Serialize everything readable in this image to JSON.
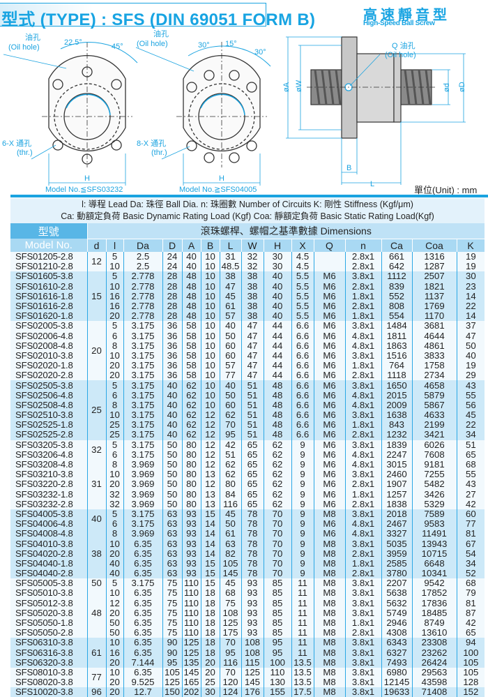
{
  "header": {
    "title": "型式 (TYPE) : SFS (DIN 69051 FORM B)",
    "subtitle_cn": "高速靜音型",
    "subtitle_en": "High-Speed Ball Screw"
  },
  "diagrams": {
    "left": {
      "oil_hole_cn": "油孔",
      "oil_hole_en": "(Oil hole)",
      "angle1": "22.5°",
      "angle2": "45°",
      "holes_cn": "6-X 通孔",
      "holes_en": "(thr.)",
      "dim": "H",
      "caption": "Model No.≦SFS03232"
    },
    "middle": {
      "oil_hole_cn": "油孔",
      "oil_hole_en": "(Oil hole)",
      "angle1": "30°",
      "angle2": "15°",
      "angle3": "30°",
      "holes_cn": "8-X 通孔",
      "holes_en": "(thr.)",
      "dim": "H",
      "caption": "Model No.≧SFS04005"
    },
    "side": {
      "oil_hole_cn": "Q 油孔",
      "oil_hole_en": "(Oil hole)",
      "dim_A": "øA",
      "dim_W": "øW",
      "dim_d": "ød",
      "dim_D": "øD",
      "dim_B": "B",
      "dim_L": "L"
    },
    "unit": "單位(Unit) : mm"
  },
  "legend": {
    "line1": "l: 導程  Lead    Da: 珠徑  Ball Dia.   n: 珠圈數  Number of Circuits    K: 剛性  Stiffness (Kgf/μm)",
    "line2": "Ca: 動額定負荷  Basic Dynamic Rating Load (Kgf)   Coa: 靜額定負荷  Basic Static Rating Load(Kgf)"
  },
  "table": {
    "model_header_cn": "型號",
    "model_header_en": "Model No.",
    "dimensions_header": "滾珠螺桿、螺帽之基準數據  Dimensions",
    "columns": [
      "d",
      "l",
      "Da",
      "D",
      "A",
      "B",
      "L",
      "W",
      "H",
      "X",
      "Q",
      "n",
      "Ca",
      "Coa",
      "K"
    ],
    "groups": [
      {
        "d": "12",
        "rows": [
          [
            "SFS01205-2.8",
            "5",
            "2.5",
            "24",
            "40",
            "10",
            "31",
            "32",
            "30",
            "4.5",
            "",
            "2.8x1",
            "661",
            "1316",
            "19"
          ],
          [
            "SFS01210-2.8",
            "10",
            "2.5",
            "24",
            "40",
            "10",
            "48.5",
            "32",
            "30",
            "4.5",
            "",
            "2.8x1",
            "642",
            "1287",
            "19"
          ]
        ]
      },
      {
        "d": "15",
        "rows": [
          [
            "SFS01605-3.8",
            "5",
            "2.778",
            "28",
            "48",
            "10",
            "38",
            "38",
            "40",
            "5.5",
            "M6",
            "3.8x1",
            "1112",
            "2507",
            "30"
          ],
          [
            "SFS01610-2.8",
            "10",
            "2.778",
            "28",
            "48",
            "10",
            "47",
            "38",
            "40",
            "5.5",
            "M6",
            "2.8x1",
            "839",
            "1821",
            "23"
          ],
          [
            "SFS01616-1.8",
            "16",
            "2.778",
            "28",
            "48",
            "10",
            "45",
            "38",
            "40",
            "5.5",
            "M6",
            "1.8x1",
            "552",
            "1137",
            "14"
          ],
          [
            "SFS01616-2.8",
            "16",
            "2.778",
            "28",
            "48",
            "10",
            "61",
            "38",
            "40",
            "5.5",
            "M6",
            "2.8x1",
            "808",
            "1769",
            "22"
          ],
          [
            "SFS01620-1.8",
            "20",
            "2.778",
            "28",
            "48",
            "10",
            "57",
            "38",
            "40",
            "5.5",
            "M6",
            "1.8x1",
            "554",
            "1170",
            "14"
          ]
        ]
      },
      {
        "d": "20",
        "rows": [
          [
            "SFS02005-3.8",
            "5",
            "3.175",
            "36",
            "58",
            "10",
            "40",
            "47",
            "44",
            "6.6",
            "M6",
            "3.8x1",
            "1484",
            "3681",
            "37"
          ],
          [
            "SFS02006-4.8",
            "6",
            "3.175",
            "36",
            "58",
            "10",
            "50",
            "47",
            "44",
            "6.6",
            "M6",
            "4.8x1",
            "1811",
            "4644",
            "47"
          ],
          [
            "SFS02008-4.8",
            "8",
            "3.175",
            "36",
            "58",
            "10",
            "60",
            "47",
            "44",
            "6.6",
            "M6",
            "4.8x1",
            "1863",
            "4861",
            "50"
          ],
          [
            "SFS02010-3.8",
            "10",
            "3.175",
            "36",
            "58",
            "10",
            "60",
            "47",
            "44",
            "6.6",
            "M6",
            "3.8x1",
            "1516",
            "3833",
            "40"
          ],
          [
            "SFS02020-1.8",
            "20",
            "3.175",
            "36",
            "58",
            "10",
            "57",
            "47",
            "44",
            "6.6",
            "M6",
            "1.8x1",
            "764",
            "1758",
            "19"
          ],
          [
            "SFS02020-2.8",
            "20",
            "3.175",
            "36",
            "58",
            "10",
            "77",
            "47",
            "44",
            "6.6",
            "M6",
            "2.8x1",
            "1118",
            "2734",
            "29"
          ]
        ]
      },
      {
        "d": "25",
        "rows": [
          [
            "SFS02505-3.8",
            "5",
            "3.175",
            "40",
            "62",
            "10",
            "40",
            "51",
            "48",
            "6.6",
            "M6",
            "3.8x1",
            "1650",
            "4658",
            "43"
          ],
          [
            "SFS02506-4.8",
            "6",
            "3.175",
            "40",
            "62",
            "10",
            "50",
            "51",
            "48",
            "6.6",
            "M6",
            "4.8x1",
            "2015",
            "5879",
            "55"
          ],
          [
            "SFS02508-4.8",
            "8",
            "3.175",
            "40",
            "62",
            "10",
            "60",
            "51",
            "48",
            "6.6",
            "M6",
            "4.8x1",
            "2009",
            "5867",
            "56"
          ],
          [
            "SFS02510-3.8",
            "10",
            "3.175",
            "40",
            "62",
            "12",
            "62",
            "51",
            "48",
            "6.6",
            "M6",
            "3.8x1",
            "1638",
            "4633",
            "45"
          ],
          [
            "SFS02525-1.8",
            "25",
            "3.175",
            "40",
            "62",
            "12",
            "70",
            "51",
            "48",
            "6.6",
            "M6",
            "1.8x1",
            "843",
            "2199",
            "22"
          ],
          [
            "SFS02525-2.8",
            "25",
            "3.175",
            "40",
            "62",
            "12",
            "95",
            "51",
            "48",
            "6.6",
            "M6",
            "2.8x1",
            "1232",
            "3421",
            "34"
          ]
        ]
      },
      {
        "d": "32",
        "rows": [
          [
            "SFS03205-3.8",
            "5",
            "3.175",
            "50",
            "80",
            "12",
            "42",
            "65",
            "62",
            "9",
            "M6",
            "3.8x1",
            "1839",
            "6026",
            "51"
          ],
          [
            "SFS03206-4.8",
            "6",
            "3.175",
            "50",
            "80",
            "12",
            "51",
            "65",
            "62",
            "9",
            "M6",
            "4.8x1",
            "2247",
            "7608",
            "65"
          ]
        ]
      },
      {
        "d": "31",
        "rows": [
          [
            "SFS03208-4.8",
            "8",
            "3.969",
            "50",
            "80",
            "12",
            "62",
            "65",
            "62",
            "9",
            "M6",
            "4.8x1",
            "3015",
            "9181",
            "68"
          ],
          [
            "SFS03210-3.8",
            "10",
            "3.969",
            "50",
            "80",
            "13",
            "62",
            "65",
            "62",
            "9",
            "M6",
            "3.8x1",
            "2460",
            "7255",
            "55"
          ],
          [
            "SFS03220-2.8",
            "20",
            "3.969",
            "50",
            "80",
            "12",
            "80",
            "65",
            "62",
            "9",
            "M6",
            "2.8x1",
            "1907",
            "5482",
            "43"
          ],
          [
            "SFS03232-1.8",
            "32",
            "3.969",
            "50",
            "80",
            "13",
            "84",
            "65",
            "62",
            "9",
            "M6",
            "1.8x1",
            "1257",
            "3426",
            "27"
          ],
          [
            "SFS03232-2.8",
            "32",
            "3.969",
            "50",
            "80",
            "13",
            "116",
            "65",
            "62",
            "9",
            "M6",
            "2.8x1",
            "1838",
            "5329",
            "42"
          ]
        ]
      },
      {
        "d": "40",
        "rows": [
          [
            "SFS04005-3.8",
            "5",
            "3.175",
            "63",
            "93",
            "15",
            "45",
            "78",
            "70",
            "9",
            "M8",
            "3.8x1",
            "2018",
            "7589",
            "60"
          ],
          [
            "SFS04006-4.8",
            "6",
            "3.175",
            "63",
            "93",
            "14",
            "50",
            "78",
            "70",
            "9",
            "M6",
            "4.8x1",
            "2467",
            "9583",
            "77"
          ]
        ]
      },
      {
        "d": "38",
        "rows": [
          [
            "SFS04008-4.8",
            "8",
            "3.969",
            "63",
            "93",
            "14",
            "61",
            "78",
            "70",
            "9",
            "M6",
            "4.8x1",
            "3327",
            "11491",
            "81"
          ],
          [
            "SFS04010-3.8",
            "10",
            "6.35",
            "63",
            "93",
            "14",
            "63",
            "78",
            "70",
            "9",
            "M8",
            "3.8x1",
            "5035",
            "13943",
            "67"
          ],
          [
            "SFS04020-2.8",
            "20",
            "6.35",
            "63",
            "93",
            "14",
            "82",
            "78",
            "70",
            "9",
            "M8",
            "2.8x1",
            "3959",
            "10715",
            "54"
          ],
          [
            "SFS04040-1.8",
            "40",
            "6.35",
            "63",
            "93",
            "15",
            "105",
            "78",
            "70",
            "9",
            "M8",
            "1.8x1",
            "2585",
            "6648",
            "34"
          ],
          [
            "SFS04040-2.8",
            "40",
            "6.35",
            "63",
            "93",
            "15",
            "145",
            "78",
            "70",
            "9",
            "M8",
            "2.8x1",
            "3780",
            "10341",
            "52"
          ]
        ]
      },
      {
        "d": "50",
        "rows": [
          [
            "SFS05005-3.8",
            "5",
            "3.175",
            "75",
            "110",
            "15",
            "45",
            "93",
            "85",
            "11",
            "M8",
            "3.8x1",
            "2207",
            "9542",
            "68"
          ]
        ]
      },
      {
        "d": "48",
        "rows": [
          [
            "SFS05010-3.8",
            "10",
            "6.35",
            "75",
            "110",
            "18",
            "68",
            "93",
            "85",
            "11",
            "M8",
            "3.8x1",
            "5638",
            "17852",
            "79"
          ],
          [
            "SFS05012-3.8",
            "12",
            "6.35",
            "75",
            "110",
            "18",
            "75",
            "93",
            "85",
            "11",
            "M8",
            "3.8x1",
            "5632",
            "17836",
            "81"
          ],
          [
            "SFS05020-3.8",
            "20",
            "6.35",
            "75",
            "110",
            "18",
            "108",
            "93",
            "85",
            "11",
            "M8",
            "3.8x1",
            "5749",
            "18485",
            "87"
          ],
          [
            "SFS05050-1.8",
            "50",
            "6.35",
            "75",
            "110",
            "18",
            "125",
            "93",
            "85",
            "11",
            "M8",
            "1.8x1",
            "2946",
            "8749",
            "42"
          ],
          [
            "SFS05050-2.8",
            "50",
            "6.35",
            "75",
            "110",
            "18",
            "175",
            "93",
            "85",
            "11",
            "M8",
            "2.8x1",
            "4308",
            "13610",
            "65"
          ]
        ]
      },
      {
        "d": "61",
        "rows": [
          [
            "SFS06310-3.8",
            "10",
            "6.35",
            "90",
            "125",
            "18",
            "70",
            "108",
            "95",
            "11",
            "M8",
            "3.8x1",
            "6343",
            "23308",
            "94"
          ],
          [
            "SFS06316-3.8",
            "16",
            "6.35",
            "90",
            "125",
            "18",
            "95",
            "108",
            "95",
            "11",
            "M8",
            "3.8x1",
            "6327",
            "23262",
            "100"
          ],
          [
            "SFS06320-3.8",
            "20",
            "7.144",
            "95",
            "135",
            "20",
            "116",
            "115",
            "100",
            "13.5",
            "M8",
            "3.8x1",
            "7493",
            "26424",
            "105"
          ]
        ]
      },
      {
        "d": "77",
        "rows": [
          [
            "SFS08010-3.8",
            "10",
            "6.35",
            "105",
            "145",
            "20",
            "70",
            "125",
            "110",
            "13.5",
            "M8",
            "3.8x1",
            "6980",
            "29563",
            "105"
          ],
          [
            "SFS08020-3.8",
            "20",
            "9.525",
            "125",
            "165",
            "25",
            "120",
            "145",
            "130",
            "13.5",
            "M8",
            "3.8x1",
            "12145",
            "43598",
            "128"
          ]
        ]
      },
      {
        "d": "96",
        "rows": [
          [
            "SFS10020-3.8",
            "20",
            "12.7",
            "150",
            "202",
            "30",
            "124",
            "176",
            "155",
            "17.5",
            "M8",
            "3.8x1",
            "19633",
            "71408",
            "152"
          ]
        ]
      }
    ]
  },
  "colors": {
    "accent": "#1aa3e0",
    "header_bg": "#58b6e6",
    "band_light": "#f2f9fd",
    "band_blue": "#cde9f8"
  }
}
